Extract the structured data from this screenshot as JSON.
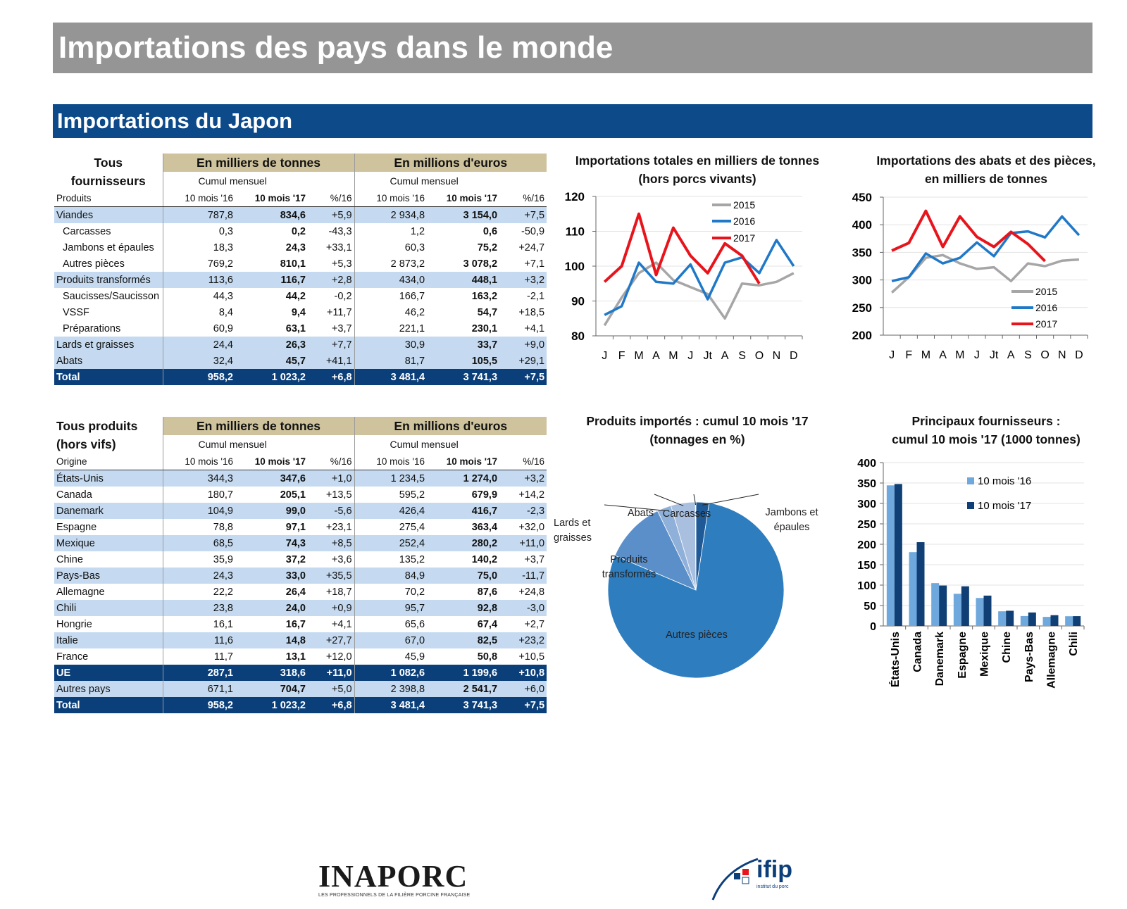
{
  "header": {
    "title": "Importations des pays dans le monde",
    "subtitle": "Importations du Japon"
  },
  "tables": [
    {
      "corner": "Tous\nfournisseurs",
      "groups": [
        "En milliers de tonnes",
        "En millions d'euros"
      ],
      "subgroups": [
        "Cumul mensuel",
        "Cumul mensuel"
      ],
      "columns": [
        "Produits",
        "10 mois '16",
        "10 mois '17",
        "%/16",
        "10 mois '16",
        "10 mois '17",
        "%/16"
      ],
      "rows": [
        [
          "Viandes",
          "787,8",
          "834,6",
          "+5,9",
          "2 934,8",
          "3 154,0",
          "+7,5"
        ],
        [
          "Carcasses",
          "0,3",
          "0,2",
          "-43,3",
          "1,2",
          "0,6",
          "-50,9"
        ],
        [
          "Jambons et épaules",
          "18,3",
          "24,3",
          "+33,1",
          "60,3",
          "75,2",
          "+24,7"
        ],
        [
          "Autres pièces",
          "769,2",
          "810,1",
          "+5,3",
          "2 873,2",
          "3 078,2",
          "+7,1"
        ],
        [
          "Produits transformés",
          "113,6",
          "116,7",
          "+2,8",
          "434,0",
          "448,1",
          "+3,2"
        ],
        [
          "Saucisses/Saucisson",
          "44,3",
          "44,2",
          "-0,2",
          "166,7",
          "163,2",
          "-2,1"
        ],
        [
          "VSSF",
          "8,4",
          "9,4",
          "+11,7",
          "46,2",
          "54,7",
          "+18,5"
        ],
        [
          "Préparations",
          "60,9",
          "63,1",
          "+3,7",
          "221,1",
          "230,1",
          "+4,1"
        ],
        [
          "Lards et graisses",
          "24,4",
          "26,3",
          "+7,7",
          "30,9",
          "33,7",
          "+9,0"
        ],
        [
          "Abats",
          "32,4",
          "45,7",
          "+41,1",
          "81,7",
          "105,5",
          "+29,1"
        ],
        [
          "Total",
          "958,2",
          "1 023,2",
          "+6,8",
          "3 481,4",
          "3 741,3",
          "+7,5"
        ]
      ]
    },
    {
      "corner": "Tous produits\n(hors vifs)",
      "groups": [
        "En milliers de tonnes",
        "En millions d'euros"
      ],
      "subgroups": [
        "Cumul mensuel",
        "Cumul mensuel"
      ],
      "columns": [
        "Origine",
        "10 mois '16",
        "10 mois '17",
        "%/16",
        "10 mois '16",
        "10 mois '17",
        "%/16"
      ],
      "rows": [
        [
          "États-Unis",
          "344,3",
          "347,6",
          "+1,0",
          "1 234,5",
          "1 274,0",
          "+3,2"
        ],
        [
          "Canada",
          "180,7",
          "205,1",
          "+13,5",
          "595,2",
          "679,9",
          "+14,2"
        ],
        [
          "Danemark",
          "104,9",
          "99,0",
          "-5,6",
          "426,4",
          "416,7",
          "-2,3"
        ],
        [
          "Espagne",
          "78,8",
          "97,1",
          "+23,1",
          "275,4",
          "363,4",
          "+32,0"
        ],
        [
          "Mexique",
          "68,5",
          "74,3",
          "+8,5",
          "252,4",
          "280,2",
          "+11,0"
        ],
        [
          "Chine",
          "35,9",
          "37,2",
          "+3,6",
          "135,2",
          "140,2",
          "+3,7"
        ],
        [
          "Pays-Bas",
          "24,3",
          "33,0",
          "+35,5",
          "84,9",
          "75,0",
          "-11,7"
        ],
        [
          "Allemagne",
          "22,2",
          "26,4",
          "+18,7",
          "70,2",
          "87,6",
          "+24,8"
        ],
        [
          "Chili",
          "23,8",
          "24,0",
          "+0,9",
          "95,7",
          "92,8",
          "-3,0"
        ],
        [
          "Hongrie",
          "16,1",
          "16,7",
          "+4,1",
          "65,6",
          "67,4",
          "+2,7"
        ],
        [
          "Italie",
          "11,6",
          "14,8",
          "+27,7",
          "67,0",
          "82,5",
          "+23,2"
        ],
        [
          "France",
          "11,7",
          "13,1",
          "+12,0",
          "45,9",
          "50,8",
          "+10,5"
        ],
        [
          "UE",
          "287,1",
          "318,6",
          "+11,0",
          "1 082,6",
          "1 199,6",
          "+10,8"
        ],
        [
          "Autres pays",
          "671,1",
          "704,7",
          "+5,0",
          "2 398,8",
          "2 541,7",
          "+6,0"
        ],
        [
          "Total",
          "958,2",
          "1 023,2",
          "+6,8",
          "3 481,4",
          "3 741,3",
          "+7,5"
        ]
      ]
    }
  ],
  "chart_data": [
    {
      "type": "line",
      "title": "Importations totales en milliers de tonnes\n(hors porcs vivants)",
      "categories": [
        "J",
        "F",
        "M",
        "A",
        "M",
        "J",
        "Jt",
        "A",
        "S",
        "O",
        "N",
        "D"
      ],
      "ylim": [
        80,
        120
      ],
      "yticks": [
        80,
        90,
        100,
        110,
        120
      ],
      "grid": true,
      "legend": "upper right",
      "series": [
        {
          "name": "2015",
          "color": "#a6a6a6",
          "values": [
            83,
            91,
            98,
            101,
            96,
            94,
            92,
            85,
            95,
            94.5,
            95.5,
            98
          ]
        },
        {
          "name": "2016",
          "color": "#1f78c8",
          "values": [
            86,
            88.5,
            101,
            95.5,
            95,
            100.5,
            90.5,
            101,
            102.5,
            98,
            107.5,
            100
          ]
        },
        {
          "name": "2017",
          "color": "#e8141c",
          "values": [
            95.5,
            100,
            115,
            97.5,
            111,
            103,
            98,
            106.5,
            103,
            95,
            null,
            null
          ]
        }
      ]
    },
    {
      "type": "line",
      "title": "Importations des abats et des pièces,\nen milliers de tonnes",
      "categories": [
        "J",
        "F",
        "M",
        "A",
        "M",
        "J",
        "Jt",
        "A",
        "S",
        "O",
        "N",
        "D"
      ],
      "ylim": [
        200,
        450
      ],
      "yticks": [
        200,
        250,
        300,
        350,
        400,
        450
      ],
      "grid": true,
      "legend": "lower right",
      "series": [
        {
          "name": "2015",
          "color": "#a6a6a6",
          "values": [
            277,
            305,
            340,
            345,
            330,
            320,
            323,
            298,
            330,
            325,
            335,
            337
          ]
        },
        {
          "name": "2016",
          "color": "#1f78c8",
          "values": [
            298,
            305,
            348,
            330,
            340,
            368,
            343,
            385,
            388,
            377,
            415,
            381
          ]
        },
        {
          "name": "2017",
          "color": "#e8141c",
          "values": [
            353,
            367,
            425,
            360,
            415,
            378,
            360,
            387,
            365,
            334,
            null,
            null
          ]
        }
      ]
    },
    {
      "type": "pie",
      "title": "Produits importés : cumul 10 mois '17\n(tonnages en %)",
      "categories": [
        "Jambons et\népaules",
        "Autres pièces",
        "Produits\ntransformés",
        "Lards et\ngraisses",
        "Abats",
        "Carcasses"
      ],
      "values": [
        2.4,
        79.1,
        11.4,
        2.6,
        4.5,
        0.1
      ],
      "colors": [
        "#1f5a96",
        "#2e7dbf",
        "#5b8fc9",
        "#8fb0d9",
        "#a9bfdf",
        "#c8d4e8"
      ]
    },
    {
      "type": "bar",
      "title": "Principaux fournisseurs :\ncumul 10 mois '17 (1000 tonnes)",
      "categories": [
        "États-Unis",
        "Canada",
        "Danemark",
        "Espagne",
        "Mexique",
        "Chine",
        "Pays-Bas",
        "Allemagne",
        "Chili"
      ],
      "ylim": [
        0,
        400
      ],
      "yticks": [
        0,
        50,
        100,
        150,
        200,
        250,
        300,
        350,
        400
      ],
      "grid": true,
      "legend": "upper right",
      "series": [
        {
          "name": "10 mois '16",
          "color": "#6fa8dc",
          "values": [
            344.3,
            180.7,
            104.9,
            78.8,
            68.5,
            35.9,
            24.3,
            22.2,
            23.8
          ]
        },
        {
          "name": "10 mois '17",
          "color": "#0f3f74",
          "values": [
            347.6,
            205.1,
            99.0,
            97.1,
            74.3,
            37.2,
            33.0,
            26.4,
            24.0
          ]
        }
      ]
    }
  ],
  "footer": {
    "logos": [
      {
        "name": "INAPORC",
        "tagline": "LES PROFESSIONNELS DE LA FILIÈRE PORCINE FRANÇAISE"
      },
      {
        "name": "ifip",
        "tagline": "institut du porc"
      }
    ]
  }
}
